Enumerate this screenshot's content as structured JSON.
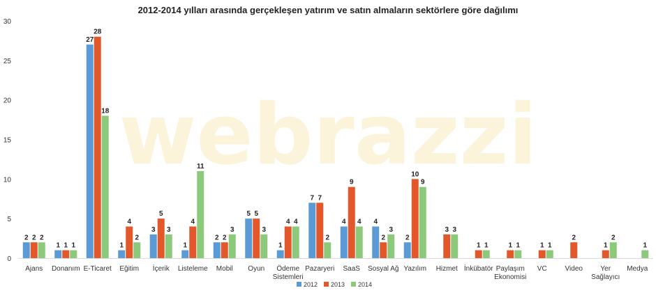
{
  "watermark": "webrazzi",
  "chart_data": {
    "type": "bar",
    "title": "2012-2014 yılları arasında gerçekleşen yatırım ve satın almaların sektörlere göre dağılımı",
    "xlabel": "",
    "ylabel": "",
    "ylim": [
      0,
      30
    ],
    "yticks": [
      0,
      5,
      10,
      15,
      20,
      25,
      30
    ],
    "grid": false,
    "legend_position": "bottom",
    "categories": [
      [
        "Ajans"
      ],
      [
        "Donanım"
      ],
      [
        "E-Ticaret"
      ],
      [
        "Eğitim"
      ],
      [
        "İçerik"
      ],
      [
        "Listeleme"
      ],
      [
        "Mobil"
      ],
      [
        "Oyun"
      ],
      [
        "Ödeme",
        "Sistemleri"
      ],
      [
        "Pazaryeri"
      ],
      [
        "SaaS"
      ],
      [
        "Sosyal Ağ"
      ],
      [
        "Yazılım"
      ],
      [
        "Hizmet"
      ],
      [
        "İnkübatör"
      ],
      [
        "Paylaşım",
        "Ekonomisi"
      ],
      [
        "VC"
      ],
      [
        "Video"
      ],
      [
        "Yer",
        "Sağlayıcı"
      ],
      [
        "Medya"
      ]
    ],
    "series": [
      {
        "name": "2012",
        "color": "#5b9bd5",
        "values": [
          2,
          1,
          27,
          1,
          3,
          1,
          2,
          5,
          1,
          7,
          4,
          4,
          2,
          null,
          null,
          null,
          null,
          null,
          null,
          null
        ]
      },
      {
        "name": "2013",
        "color": "#e2582b",
        "values": [
          2,
          1,
          28,
          4,
          5,
          4,
          2,
          5,
          4,
          7,
          9,
          2,
          10,
          3,
          1,
          1,
          1,
          2,
          1,
          null
        ]
      },
      {
        "name": "2014",
        "color": "#8cc97b",
        "values": [
          2,
          1,
          18,
          2,
          3,
          11,
          3,
          3,
          4,
          2,
          4,
          3,
          9,
          3,
          1,
          1,
          1,
          null,
          2,
          1
        ]
      }
    ]
  }
}
